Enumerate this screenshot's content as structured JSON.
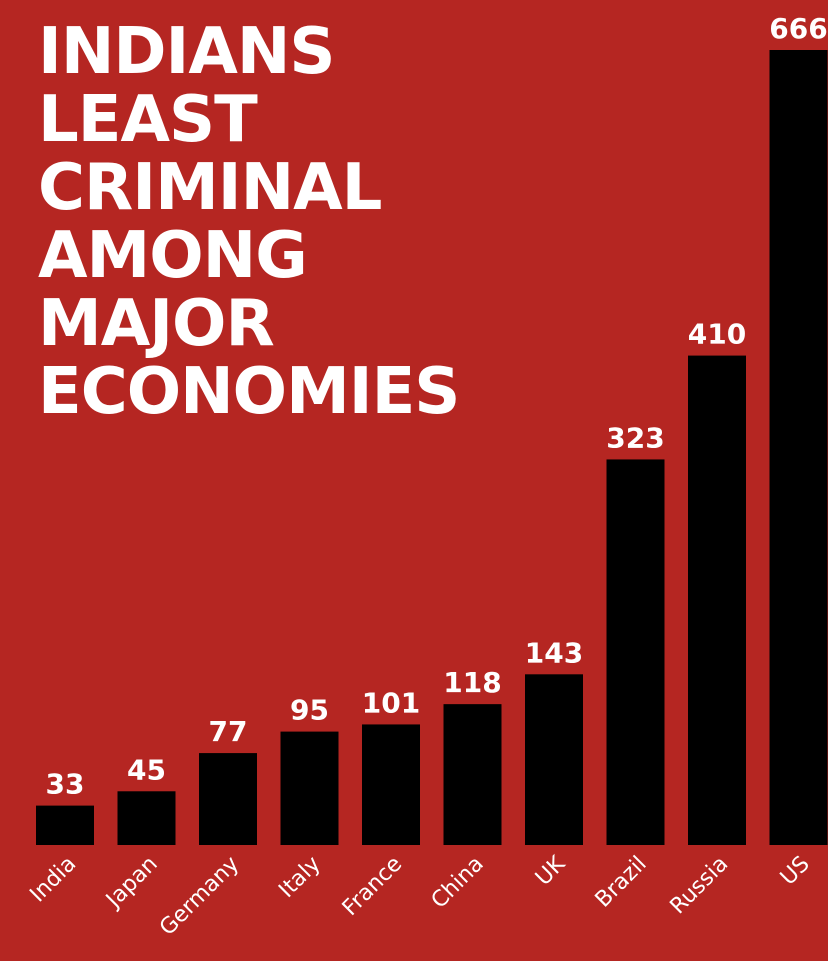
{
  "chart_data": {
    "type": "bar",
    "title_lines": [
      "INDIANS",
      "LEAST",
      "CRIMINAL",
      "AMONG",
      "MAJOR",
      "ECONOMIES"
    ],
    "categories": [
      "India",
      "Japan",
      "Germany",
      "Italy",
      "France",
      "China",
      "UK",
      "Brazil",
      "Russia",
      "US"
    ],
    "values": [
      33,
      45,
      77,
      95,
      101,
      118,
      143,
      323,
      410,
      666
    ],
    "value_labels": [
      "33",
      "45",
      "77",
      "95",
      "101",
      "118",
      "143",
      "323",
      "410",
      "666"
    ],
    "xlabel": "",
    "ylabel": "",
    "ylim": [
      0,
      666
    ],
    "grid": false,
    "legend": "none"
  },
  "colors": {
    "background": "#b52622",
    "bars": "#000000",
    "text": "#ffffff"
  }
}
